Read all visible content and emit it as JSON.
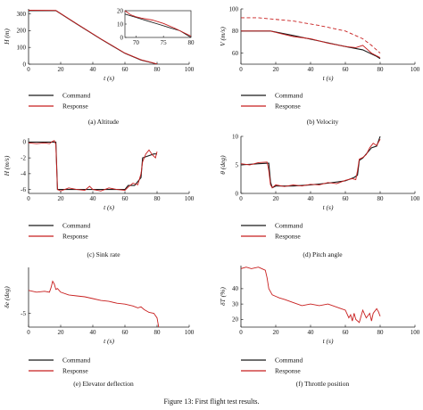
{
  "figure_caption": "Figure 13: First flight test results.",
  "legend": {
    "command": "Command",
    "response": "Response"
  },
  "colors": {
    "command": "#1a1a1a",
    "response": "#c81e1e"
  },
  "chart_data": [
    {
      "id": "a",
      "type": "line",
      "caption": "(a) Altitude",
      "xlabel": "t (s)",
      "ylabel": "H (m)",
      "xlim": [
        0,
        100
      ],
      "ylim": [
        0,
        330
      ],
      "xticks": [
        "0",
        "20",
        "40",
        "60",
        "80",
        "100"
      ],
      "xtick_values": [
        0,
        20,
        40,
        60,
        80,
        100
      ],
      "yticks": [
        "0",
        "100",
        "200",
        "300"
      ],
      "ytick_values": [
        0,
        100,
        200,
        300
      ],
      "series": [
        {
          "name": "Command",
          "x": [
            0,
            17,
            30,
            45,
            60,
            70,
            77,
            80
          ],
          "y": [
            320,
            320,
            240,
            150,
            65,
            25,
            8,
            0
          ]
        },
        {
          "name": "Response",
          "x": [
            0,
            17,
            30,
            45,
            60,
            70,
            77,
            80
          ],
          "y": [
            322,
            321,
            241,
            151,
            66,
            26,
            9,
            1
          ]
        }
      ],
      "inset": {
        "xlim": [
          68,
          80
        ],
        "ylim": [
          0,
          20
        ],
        "xticks": [
          "70",
          "75",
          "80"
        ],
        "xtick_values": [
          70,
          75,
          80
        ],
        "yticks": [
          "0",
          "10",
          "20"
        ],
        "ytick_values": [
          0,
          10,
          20
        ],
        "series": [
          {
            "name": "Command",
            "x": [
              68,
              70,
              72,
              74,
              76,
              78,
              80
            ],
            "y": [
              17.5,
              15,
              12.5,
              10,
              7.5,
              5,
              0
            ]
          },
          {
            "name": "Response",
            "x": [
              68,
              69,
              70,
              71,
              73,
              75,
              77,
              79,
              80
            ],
            "y": [
              20,
              17,
              15.5,
              14.5,
              13,
              10.5,
              7,
              3,
              1
            ]
          }
        ]
      }
    },
    {
      "id": "b",
      "type": "line",
      "caption": "(b) Velocity",
      "xlabel": "t (s)",
      "ylabel": "V (m/s)",
      "xlim": [
        0,
        100
      ],
      "ylim": [
        50,
        100
      ],
      "xticks": [
        "0",
        "20",
        "40",
        "60",
        "80",
        "100"
      ],
      "xtick_values": [
        0,
        20,
        40,
        60,
        80,
        100
      ],
      "yticks": [
        "60",
        "80",
        "100"
      ],
      "ytick_values": [
        60,
        80,
        100
      ],
      "series": [
        {
          "name": "Command",
          "x": [
            0,
            17,
            30,
            45,
            60,
            70,
            78,
            80
          ],
          "y": [
            80,
            80,
            76,
            71,
            66,
            63,
            57,
            55
          ]
        },
        {
          "name": "Response",
          "x": [
            0,
            10,
            17,
            22,
            30,
            40,
            50,
            60,
            66,
            70,
            75,
            80
          ],
          "y": [
            80,
            80,
            80,
            78,
            75,
            73,
            69,
            66,
            65,
            67,
            60,
            56
          ]
        },
        {
          "name": "",
          "dashed": true,
          "x": [
            0,
            10,
            17,
            30,
            45,
            60,
            70,
            75,
            80
          ],
          "y": [
            92,
            92,
            91,
            89,
            85,
            80,
            73,
            67,
            60
          ]
        }
      ]
    },
    {
      "id": "c",
      "type": "line",
      "caption": "(c) Sink rate",
      "xlabel": "t (s)",
      "ylabel": "H (m/s)",
      "xlim": [
        0,
        100
      ],
      "ylim": [
        -6.5,
        0.5
      ],
      "xticks": [
        "0",
        "20",
        "40",
        "60",
        "80",
        "100"
      ],
      "xtick_values": [
        0,
        20,
        40,
        60,
        80,
        100
      ],
      "yticks": [
        "0",
        "-2",
        "-4",
        "-6"
      ],
      "ytick_values": [
        0,
        -2,
        -4,
        -6
      ],
      "series": [
        {
          "name": "Command",
          "x": [
            0,
            17,
            18,
            60,
            62,
            66,
            70,
            71,
            78,
            80
          ],
          "y": [
            0,
            0,
            -6,
            -6,
            -5.5,
            -5.5,
            -4.5,
            -2,
            -1.5,
            -1.5
          ]
        },
        {
          "name": "Response",
          "x": [
            0,
            5,
            10,
            13,
            15,
            16,
            17,
            18,
            20,
            25,
            30,
            35,
            38,
            40,
            45,
            50,
            55,
            60,
            62,
            65,
            68,
            70,
            71,
            73,
            75,
            77,
            79,
            80
          ],
          "y": [
            -0.1,
            -0.2,
            -0.1,
            -0.2,
            0.1,
            0.2,
            -0.3,
            -6,
            -6.2,
            -5.8,
            -6,
            -6.1,
            -5.6,
            -6,
            -6.2,
            -5.8,
            -6,
            -6.1,
            -5.7,
            -5.2,
            -5.4,
            -4,
            -2.5,
            -1.5,
            -1,
            -1.6,
            -2,
            -1.2
          ]
        }
      ]
    },
    {
      "id": "d",
      "type": "line",
      "caption": "(d) Pitch angle",
      "xlabel": "t (s)",
      "ylabel": "θ (deg)",
      "xlim": [
        0,
        100
      ],
      "ylim": [
        0,
        10
      ],
      "xticks": [
        "0",
        "20",
        "40",
        "60",
        "80",
        "100"
      ],
      "xtick_values": [
        0,
        20,
        40,
        60,
        80,
        100
      ],
      "yticks": [
        "0",
        "5",
        "10"
      ],
      "ytick_values": [
        0,
        5,
        10
      ],
      "series": [
        {
          "name": "Command",
          "x": [
            0,
            10,
            16,
            17,
            18,
            20,
            30,
            40,
            50,
            60,
            65,
            67,
            68,
            70,
            75,
            78,
            80
          ],
          "y": [
            5,
            5.2,
            5.3,
            2,
            1,
            1.3,
            1.3,
            1.5,
            1.8,
            2.2,
            2.8,
            3.2,
            5.8,
            6.2,
            8,
            8.3,
            10
          ]
        },
        {
          "name": "Response",
          "x": [
            0,
            5,
            10,
            15,
            16,
            17,
            18,
            20,
            25,
            30,
            35,
            40,
            45,
            50,
            55,
            60,
            64,
            66,
            67,
            68,
            70,
            72,
            74,
            76,
            78,
            80
          ],
          "y": [
            5.2,
            5,
            5.4,
            5.5,
            4,
            1.5,
            1,
            1.5,
            1.2,
            1.5,
            1.3,
            1.6,
            1.5,
            1.9,
            1.7,
            2.3,
            2.6,
            2.4,
            4,
            6,
            6.3,
            6.8,
            8,
            8.8,
            8.4,
            9.5
          ]
        }
      ]
    },
    {
      "id": "e",
      "type": "line",
      "caption": "(e) Elevator deflection",
      "xlabel": "t (s)",
      "ylabel": "δe (deg)",
      "xlim": [
        0,
        100
      ],
      "ylim": [
        -6.5,
        0
      ],
      "xticks": [
        "0",
        "20",
        "40",
        "60",
        "80",
        "100"
      ],
      "xtick_values": [
        0,
        20,
        40,
        60,
        80,
        100
      ],
      "yticks": [
        "-5"
      ],
      "ytick_values": [
        -5
      ],
      "series": [
        {
          "name": "Response",
          "x": [
            0,
            5,
            10,
            13,
            14,
            15,
            16,
            17,
            18,
            20,
            25,
            30,
            35,
            40,
            45,
            50,
            55,
            60,
            65,
            68,
            70,
            72,
            75,
            78,
            80,
            81
          ],
          "y": [
            -2.5,
            -2.7,
            -2.6,
            -2.7,
            -2.2,
            -1.5,
            -1.8,
            -2.4,
            -2.3,
            -2.7,
            -3,
            -3.1,
            -3.2,
            -3.4,
            -3.6,
            -3.7,
            -3.9,
            -4,
            -4.2,
            -4.4,
            -4.3,
            -4.6,
            -4.9,
            -5,
            -5.5,
            -6.5
          ]
        }
      ]
    },
    {
      "id": "f",
      "type": "line",
      "caption": "(f) Throttle position",
      "xlabel": "t (s)",
      "ylabel": "δT (%)",
      "xlim": [
        0,
        100
      ],
      "ylim": [
        15,
        55
      ],
      "xticks": [
        "0",
        "20",
        "40",
        "60",
        "80",
        "100"
      ],
      "xtick_values": [
        0,
        20,
        40,
        60,
        80,
        100
      ],
      "yticks": [
        "20",
        "30",
        "40"
      ],
      "ytick_values": [
        20,
        30,
        40
      ],
      "series": [
        {
          "name": "Response",
          "x": [
            0,
            3,
            6,
            10,
            12,
            14,
            15,
            16,
            18,
            20,
            22,
            25,
            30,
            35,
            40,
            45,
            50,
            55,
            60,
            62,
            63,
            64,
            65,
            66,
            68,
            70,
            72,
            74,
            75,
            76,
            78,
            79,
            80
          ],
          "y": [
            53,
            54,
            53,
            54,
            53,
            52,
            47,
            40,
            36,
            35,
            34,
            33,
            31,
            29,
            30,
            29,
            30,
            28,
            26,
            21,
            23,
            19,
            24,
            20,
            18,
            26,
            21,
            24,
            19,
            24,
            27,
            25,
            22
          ]
        }
      ]
    }
  ]
}
